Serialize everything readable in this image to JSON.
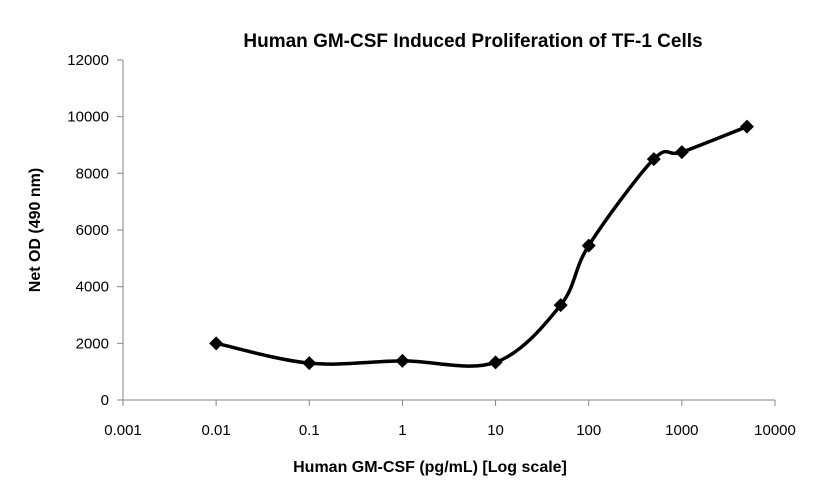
{
  "chart_data": {
    "type": "line",
    "title": "Human GM-CSF Induced Proliferation of TF-1 Cells",
    "xlabel": "Human GM-CSF (pg/mL) [Log scale]",
    "ylabel": "Net OD (490 nm)",
    "x_scale": "log",
    "xlim": [
      0.001,
      10000
    ],
    "ylim": [
      0,
      12000
    ],
    "x_ticks": [
      "0.001",
      "0.01",
      "0.1",
      "1",
      "10",
      "100",
      "1000",
      "10000"
    ],
    "y_ticks": [
      "0",
      "2000",
      "4000",
      "6000",
      "8000",
      "10000",
      "12000"
    ],
    "grid": false,
    "legend": "none",
    "line_color": "#000000",
    "marker": "diamond",
    "series": [
      {
        "x": [
          0.01,
          0.1,
          1,
          10,
          50,
          100,
          500,
          1000,
          5000
        ],
        "y": [
          2000,
          1300,
          1380,
          1330,
          3350,
          5450,
          8500,
          8750,
          9650
        ]
      }
    ]
  }
}
